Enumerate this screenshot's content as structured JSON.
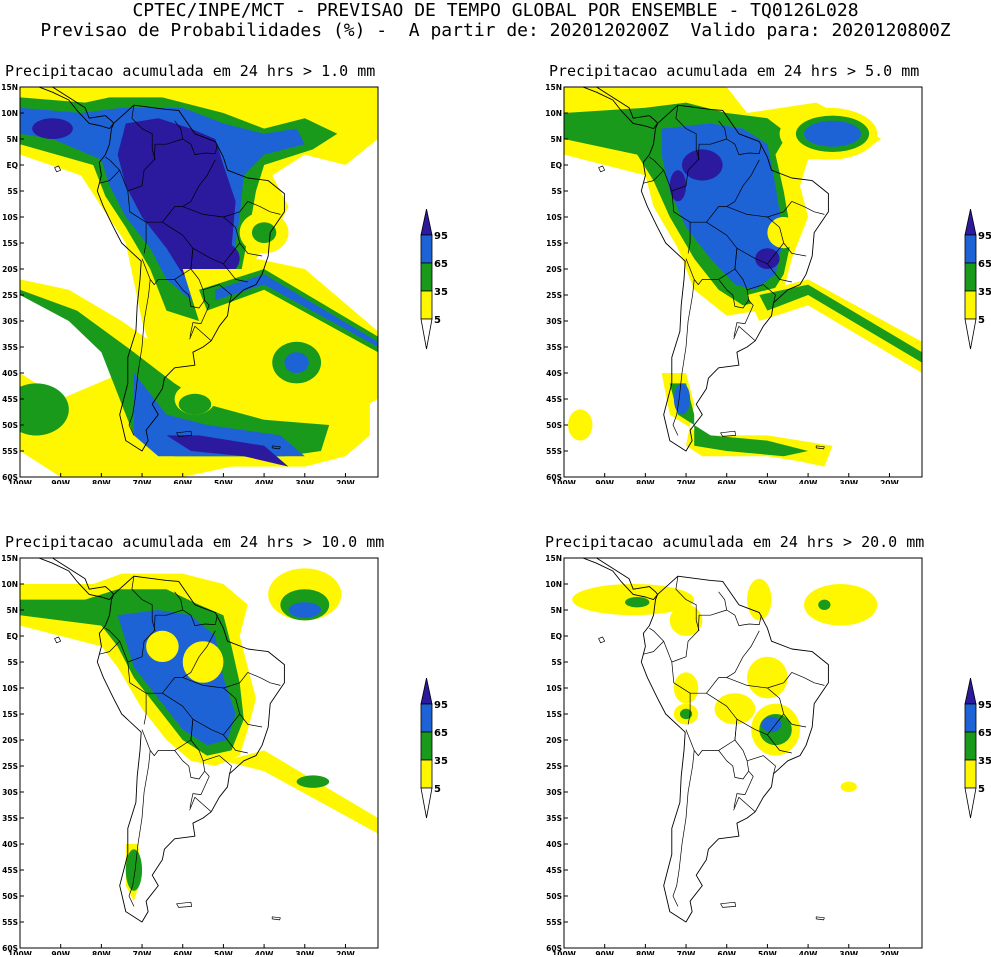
{
  "header": {
    "line1": "CPTEC/INPE/MCT - PREVISAO DE TEMPO GLOBAL POR ENSEMBLE - TQ0126L028",
    "line2": "Previsao de Probabilidades (%) -  A partir de: 2020120200Z  Valido para: 2020120800Z"
  },
  "axes": {
    "lat_labels": [
      "15N",
      "10N",
      "5N",
      "EQ",
      "5S",
      "10S",
      "15S",
      "20S",
      "25S",
      "30S",
      "35S",
      "40S",
      "45S",
      "50S",
      "55S",
      "60S"
    ],
    "lon_labels": [
      "100W",
      "90W",
      "80W",
      "70W",
      "60W",
      "50W",
      "40W",
      "30W",
      "20W"
    ]
  },
  "legend": {
    "levels": [
      "95",
      "65",
      "35",
      "5"
    ],
    "colors": {
      "c95": "#2b1a9e",
      "c65": "#1e63d6",
      "c35": "#1a9a1a",
      "c5": "#fff700"
    }
  },
  "panels": [
    {
      "id": "p1",
      "title": "Precipitacao acumulada em 24 hrs > 1.0 mm"
    },
    {
      "id": "p2",
      "title": "Precipitacao acumulada em 24 hrs > 5.0 mm"
    },
    {
      "id": "p3",
      "title": "Precipitacao acumulada em 24 hrs > 10.0 mm"
    },
    {
      "id": "p4",
      "title": "Precipitacao acumulada em 24 hrs > 20.0 mm"
    }
  ]
}
